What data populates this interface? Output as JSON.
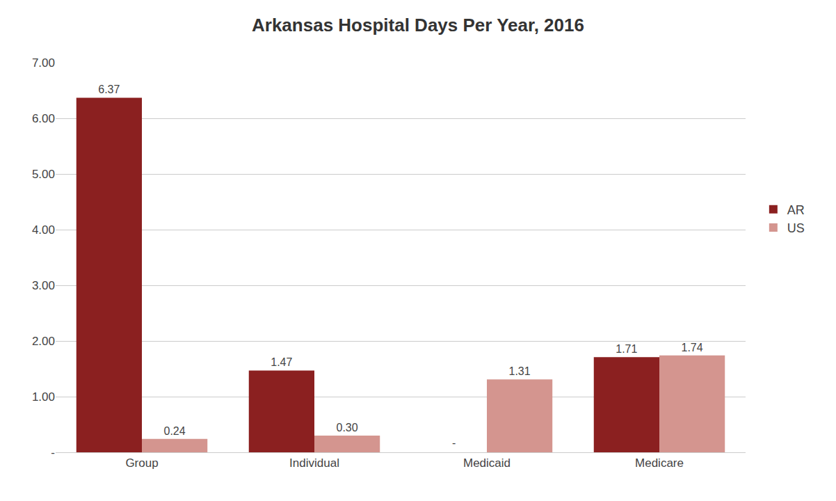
{
  "chart_data": {
    "type": "bar",
    "title": "Arkansas Hospital Days Per Year, 2016",
    "categories": [
      "Group",
      "Individual",
      "Medicaid",
      "Medicare"
    ],
    "series": [
      {
        "name": "AR",
        "color": "#8B2020",
        "values": [
          6.37,
          1.47,
          null,
          1.71
        ],
        "value_labels": [
          "6.37",
          "1.47",
          "-",
          "1.71"
        ]
      },
      {
        "name": "US",
        "color": "#D4958F",
        "values": [
          0.24,
          0.3,
          1.31,
          1.74
        ],
        "value_labels": [
          "0.24",
          "0.30",
          "1.31",
          "1.74"
        ]
      }
    ],
    "ylim": [
      0,
      7.0
    ],
    "yticks": [
      {
        "value": 0.0,
        "label": "-"
      },
      {
        "value": 1.0,
        "label": "1.00"
      },
      {
        "value": 2.0,
        "label": "2.00"
      },
      {
        "value": 3.0,
        "label": "3.00"
      },
      {
        "value": 4.0,
        "label": "4.00"
      },
      {
        "value": 5.0,
        "label": "5.00"
      },
      {
        "value": 6.0,
        "label": "6.00"
      },
      {
        "value": 7.0,
        "label": "7.00"
      }
    ],
    "grid": true,
    "legend": "right",
    "data_labels": true
  }
}
